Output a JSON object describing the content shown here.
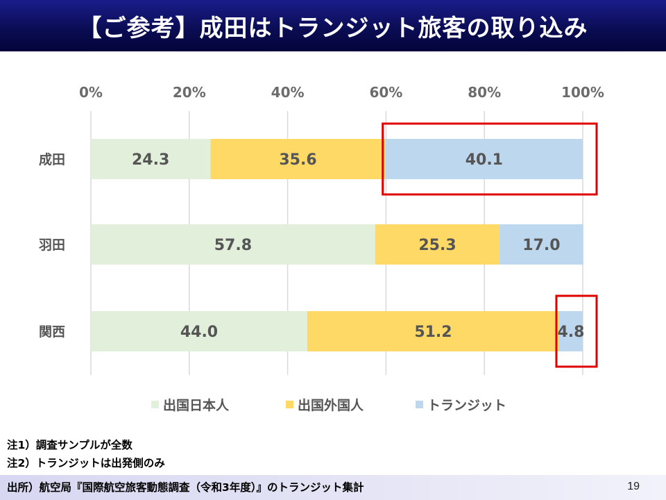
{
  "title": "【ご参考】成田はトランジット旅客の取り込み",
  "chart_data": {
    "type": "bar",
    "orientation": "horizontal",
    "stacked": true,
    "categories": [
      "成田",
      "羽田",
      "関西"
    ],
    "series": [
      {
        "name": "出国日本人",
        "values": [
          24.3,
          57.8,
          44.0
        ],
        "labels": [
          "24.3",
          "57.8",
          "44.0"
        ],
        "color": "#e2efda"
      },
      {
        "name": "出国外国人",
        "values": [
          35.6,
          25.3,
          51.2
        ],
        "labels": [
          "35.6",
          "25.3",
          "51.2"
        ],
        "color": "#ffd966"
      },
      {
        "name": "トランジット",
        "values": [
          40.1,
          17.0,
          4.8
        ],
        "labels": [
          "40.1",
          "17.0",
          "4.8"
        ],
        "color": "#bdd7ee"
      }
    ],
    "xticks": [
      "0%",
      "20%",
      "40%",
      "60%",
      "80%",
      "100%"
    ],
    "xlim": [
      0,
      100
    ],
    "xaxis_position": "top",
    "grid": true,
    "legend": "bottom",
    "highlight": [
      {
        "category": "成田",
        "series": "トランジット",
        "color": "#e00000"
      },
      {
        "category": "関西",
        "series": "トランジット",
        "color": "#e00000"
      }
    ]
  },
  "notes": [
    "注1）調査サンプルが全数",
    "注2）トランジットは出発側のみ"
  ],
  "source": "出所）航空局『国際航空旅客動態調査（令和3年度）』のトランジット集計",
  "page_number": "19"
}
